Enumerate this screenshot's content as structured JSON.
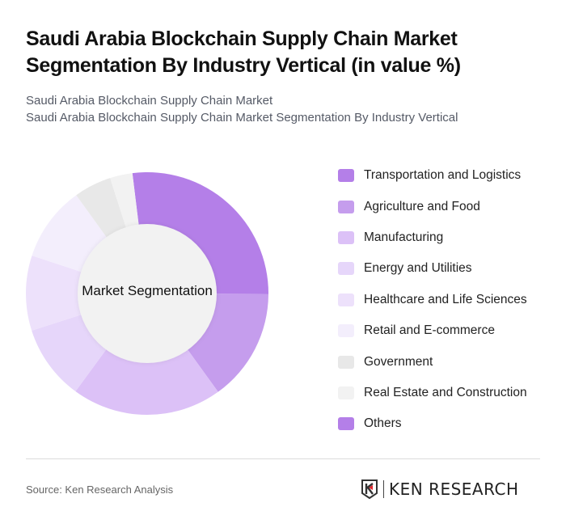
{
  "header": {
    "title": "Saudi Arabia Blockchain Supply Chain Market Segmentation By Industry Vertical (in value %)",
    "subtitle_line1": "Saudi Arabia Blockchain Supply Chain Market",
    "subtitle_line2": "Saudi Arabia Blockchain Supply Chain Market Segmentation By Industry Vertical"
  },
  "chart_data": {
    "type": "pie",
    "variant": "donut",
    "title": "Saudi Arabia Blockchain Supply Chain Market Segmentation By Industry Vertical (in value %)",
    "center_label": "Market Segmentation",
    "categories": [
      "Transportation and Logistics",
      "Agriculture and Food",
      "Manufacturing",
      "Energy and Utilities",
      "Healthcare and Life Sciences",
      "Retail and E-commerce",
      "Government",
      "Real Estate and Construction",
      "Others"
    ],
    "values": [
      27,
      15,
      20,
      10,
      10,
      10,
      5,
      3,
      0
    ],
    "colors": [
      "#b47fe8",
      "#c59ded",
      "#dcc1f7",
      "#e6d6fa",
      "#ede1fb",
      "#f3eefc",
      "#e8e8e8",
      "#f2f2f2",
      "#b47fe8"
    ],
    "legend_position": "right",
    "start_angle_deg": -7
  },
  "legend": [
    {
      "label": "Transportation and Logistics",
      "color": "#b47fe8"
    },
    {
      "label": "Agriculture and Food",
      "color": "#c59ded"
    },
    {
      "label": "Manufacturing",
      "color": "#dcc1f7"
    },
    {
      "label": "Energy and Utilities",
      "color": "#e6d6fa"
    },
    {
      "label": "Healthcare and Life Sciences",
      "color": "#ede1fb"
    },
    {
      "label": "Retail and E-commerce",
      "color": "#f3eefc"
    },
    {
      "label": "Government",
      "color": "#e8e8e8"
    },
    {
      "label": "Real Estate and Construction",
      "color": "#f2f2f2"
    },
    {
      "label": "Others",
      "color": "#b47fe8"
    }
  ],
  "footer": {
    "source": "Source: Ken Research Analysis",
    "logo_text": "KEN RESEARCH"
  }
}
